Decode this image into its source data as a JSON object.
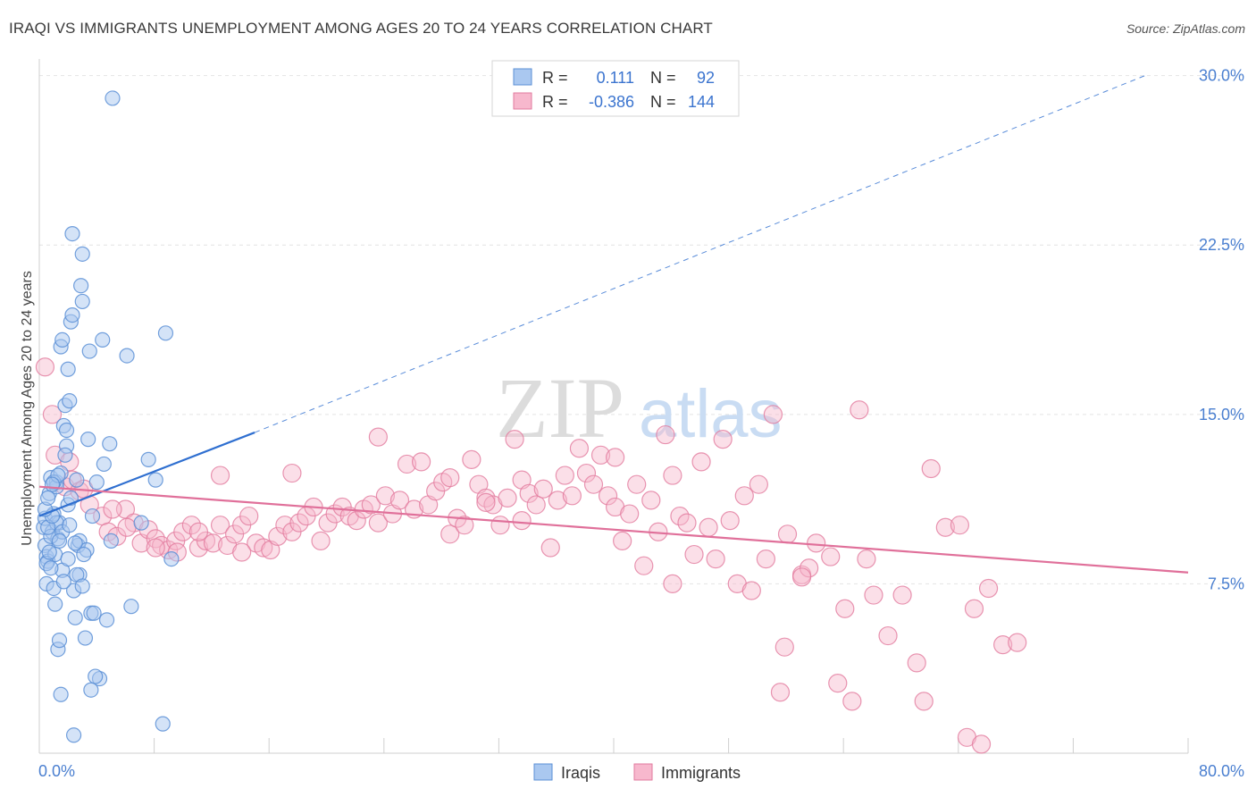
{
  "header": {
    "title": "IRAQI VS IMMIGRANTS UNEMPLOYMENT AMONG AGES 20 TO 24 YEARS CORRELATION CHART",
    "source": "Source: ZipAtlas.com"
  },
  "legend_box": {
    "iraqis": {
      "r_label": "R =",
      "r_value": "0.111",
      "n_label": "N =",
      "n_value": "92"
    },
    "immigrants": {
      "r_label": "R =",
      "r_value": "-0.386",
      "n_label": "N =",
      "n_value": "144"
    }
  },
  "bottom_legend": {
    "iraqis": "Iraqis",
    "immigrants": "Immigrants"
  },
  "watermark": {
    "zip": "ZIP",
    "atlas": "atlas"
  },
  "colors": {
    "iraqis_fill": "#aac8f0",
    "iraqis_stroke": "#5b8fd6",
    "iraqis_line": "#2f6fd0",
    "immigrants_fill": "#f7b8cd",
    "immigrants_stroke": "#e27a9e",
    "immigrants_line": "#e0709a",
    "tick_label": "#4a7fd0",
    "grid": "#e4e4e4"
  },
  "chart_data": {
    "type": "scatter",
    "title": "IRAQI VS IMMIGRANTS UNEMPLOYMENT AMONG AGES 20 TO 24 YEARS CORRELATION CHART",
    "xlabel": "",
    "ylabel": "Unemployment Among Ages 20 to 24 years",
    "xlim": [
      0,
      80
    ],
    "ylim": [
      0,
      30.5
    ],
    "x_tick_labels": [
      "0.0%",
      "80.0%"
    ],
    "y_ticks": [
      7.5,
      15.0,
      22.5,
      30.0
    ],
    "y_tick_labels": [
      "7.5%",
      "15.0%",
      "22.5%",
      "30.0%"
    ],
    "grid": true,
    "legend_position": "top-center",
    "series": [
      {
        "name": "Iraqis",
        "r": 0.111,
        "n": 92,
        "trend": {
          "x": [
            0.0,
            15.0
          ],
          "y": [
            10.5,
            14.2
          ],
          "dashed_extension": {
            "x": [
              15.0,
              77.0
            ],
            "y": [
              14.2,
              30.0
            ]
          }
        },
        "points": [
          [
            0.3,
            10.0
          ],
          [
            0.4,
            9.2
          ],
          [
            0.5,
            8.7
          ],
          [
            0.6,
            8.5
          ],
          [
            0.4,
            10.4
          ],
          [
            0.7,
            11.5
          ],
          [
            0.8,
            12.2
          ],
          [
            0.5,
            7.5
          ],
          [
            0.9,
            9.8
          ],
          [
            1.0,
            10.6
          ],
          [
            1.1,
            8.8
          ],
          [
            1.2,
            12.0
          ],
          [
            1.3,
            9.5
          ],
          [
            1.4,
            10.2
          ],
          [
            1.5,
            12.4
          ],
          [
            1.6,
            8.1
          ],
          [
            1.7,
            14.5
          ],
          [
            1.8,
            15.4
          ],
          [
            1.9,
            13.6
          ],
          [
            2.0,
            11.0
          ],
          [
            2.1,
            15.6
          ],
          [
            2.2,
            19.1
          ],
          [
            2.3,
            23.0
          ],
          [
            2.4,
            7.2
          ],
          [
            2.5,
            6.0
          ],
          [
            2.7,
            9.2
          ],
          [
            2.8,
            9.4
          ],
          [
            2.6,
            12.1
          ],
          [
            2.9,
            20.7
          ],
          [
            3.0,
            20.0
          ],
          [
            3.0,
            22.1
          ],
          [
            3.2,
            5.1
          ],
          [
            3.3,
            9.0
          ],
          [
            3.4,
            13.9
          ],
          [
            3.5,
            17.8
          ],
          [
            3.6,
            6.2
          ],
          [
            3.7,
            10.5
          ],
          [
            3.8,
            6.2
          ],
          [
            4.0,
            12.0
          ],
          [
            4.2,
            3.3
          ],
          [
            4.4,
            18.3
          ],
          [
            4.5,
            12.8
          ],
          [
            4.7,
            5.9
          ],
          [
            4.9,
            13.7
          ],
          [
            5.1,
            29.0
          ],
          [
            6.1,
            17.6
          ],
          [
            6.4,
            6.5
          ],
          [
            7.1,
            10.2
          ],
          [
            7.6,
            13.0
          ],
          [
            8.1,
            12.1
          ],
          [
            8.6,
            1.3
          ],
          [
            8.8,
            18.6
          ],
          [
            9.2,
            8.6
          ],
          [
            1.5,
            18.0
          ],
          [
            1.6,
            18.3
          ],
          [
            2.0,
            17.0
          ],
          [
            1.8,
            13.2
          ],
          [
            1.2,
            10.2
          ],
          [
            0.8,
            9.6
          ],
          [
            0.6,
            10.0
          ],
          [
            1.3,
            4.6
          ],
          [
            1.5,
            2.6
          ],
          [
            2.4,
            0.8
          ],
          [
            2.8,
            7.9
          ],
          [
            3.9,
            3.4
          ],
          [
            3.6,
            2.8
          ],
          [
            2.6,
            7.9
          ],
          [
            1.0,
            7.3
          ],
          [
            1.1,
            6.6
          ],
          [
            1.4,
            5.0
          ],
          [
            0.5,
            8.4
          ],
          [
            0.7,
            8.9
          ],
          [
            0.9,
            10.5
          ],
          [
            1.2,
            11.8
          ],
          [
            1.0,
            12.0
          ],
          [
            1.9,
            14.3
          ],
          [
            2.2,
            11.3
          ],
          [
            2.5,
            9.3
          ],
          [
            3.1,
            8.8
          ],
          [
            1.6,
            9.8
          ],
          [
            0.4,
            10.8
          ],
          [
            0.6,
            11.3
          ],
          [
            1.3,
            12.3
          ],
          [
            2.1,
            10.1
          ],
          [
            0.8,
            8.2
          ],
          [
            1.4,
            9.4
          ],
          [
            2.0,
            8.6
          ],
          [
            0.9,
            11.9
          ],
          [
            1.7,
            7.6
          ],
          [
            3.0,
            7.4
          ],
          [
            5.0,
            9.4
          ],
          [
            2.3,
            19.4
          ]
        ]
      },
      {
        "name": "Immigrants",
        "r": -0.386,
        "n": 144,
        "trend": {
          "x": [
            0.0,
            80.0
          ],
          "y": [
            11.8,
            8.0
          ]
        },
        "points": [
          [
            0.4,
            17.1
          ],
          [
            0.9,
            15.0
          ],
          [
            1.1,
            13.2
          ],
          [
            1.8,
            11.8
          ],
          [
            2.3,
            12.1
          ],
          [
            2.8,
            11.6
          ],
          [
            3.5,
            11.0
          ],
          [
            4.4,
            10.5
          ],
          [
            4.8,
            9.8
          ],
          [
            5.4,
            9.6
          ],
          [
            6.0,
            10.8
          ],
          [
            6.6,
            10.2
          ],
          [
            7.1,
            9.3
          ],
          [
            7.6,
            9.9
          ],
          [
            8.1,
            9.5
          ],
          [
            8.5,
            9.2
          ],
          [
            9.0,
            9.0
          ],
          [
            9.5,
            9.4
          ],
          [
            10.0,
            9.8
          ],
          [
            10.6,
            10.1
          ],
          [
            11.1,
            9.1
          ],
          [
            11.6,
            9.4
          ],
          [
            12.1,
            9.3
          ],
          [
            12.6,
            10.1
          ],
          [
            13.1,
            9.2
          ],
          [
            13.6,
            9.7
          ],
          [
            14.1,
            10.1
          ],
          [
            14.6,
            10.5
          ],
          [
            15.1,
            9.3
          ],
          [
            15.6,
            9.1
          ],
          [
            16.1,
            9.0
          ],
          [
            16.6,
            9.6
          ],
          [
            17.1,
            10.1
          ],
          [
            17.6,
            9.8
          ],
          [
            18.1,
            10.2
          ],
          [
            18.6,
            10.5
          ],
          [
            19.1,
            10.9
          ],
          [
            19.6,
            9.4
          ],
          [
            20.1,
            10.2
          ],
          [
            20.6,
            10.6
          ],
          [
            21.1,
            10.9
          ],
          [
            21.6,
            10.5
          ],
          [
            22.1,
            10.3
          ],
          [
            22.6,
            10.8
          ],
          [
            23.1,
            11.0
          ],
          [
            23.6,
            10.2
          ],
          [
            24.1,
            11.4
          ],
          [
            24.6,
            10.6
          ],
          [
            25.1,
            11.2
          ],
          [
            25.6,
            12.8
          ],
          [
            26.1,
            10.8
          ],
          [
            26.6,
            12.9
          ],
          [
            27.1,
            11.0
          ],
          [
            27.6,
            11.6
          ],
          [
            28.1,
            12.0
          ],
          [
            28.6,
            9.7
          ],
          [
            29.1,
            10.4
          ],
          [
            29.6,
            10.1
          ],
          [
            30.1,
            13.0
          ],
          [
            30.6,
            11.9
          ],
          [
            31.1,
            11.3
          ],
          [
            31.6,
            11.0
          ],
          [
            32.1,
            10.1
          ],
          [
            32.6,
            11.3
          ],
          [
            33.1,
            13.9
          ],
          [
            33.6,
            12.1
          ],
          [
            34.1,
            11.5
          ],
          [
            34.6,
            11.0
          ],
          [
            35.1,
            11.7
          ],
          [
            35.6,
            9.1
          ],
          [
            36.1,
            11.2
          ],
          [
            36.6,
            12.3
          ],
          [
            37.1,
            11.4
          ],
          [
            37.6,
            13.5
          ],
          [
            38.1,
            12.4
          ],
          [
            38.6,
            11.9
          ],
          [
            39.1,
            13.2
          ],
          [
            39.6,
            11.4
          ],
          [
            40.1,
            10.9
          ],
          [
            40.6,
            9.4
          ],
          [
            41.1,
            10.6
          ],
          [
            41.6,
            11.9
          ],
          [
            42.1,
            8.3
          ],
          [
            42.6,
            11.2
          ],
          [
            43.1,
            9.8
          ],
          [
            43.6,
            14.1
          ],
          [
            44.1,
            7.5
          ],
          [
            44.6,
            10.5
          ],
          [
            45.1,
            10.2
          ],
          [
            45.6,
            8.8
          ],
          [
            46.1,
            12.9
          ],
          [
            46.6,
            10.0
          ],
          [
            47.1,
            8.6
          ],
          [
            47.6,
            13.9
          ],
          [
            48.1,
            10.3
          ],
          [
            48.6,
            7.5
          ],
          [
            49.1,
            11.4
          ],
          [
            49.6,
            7.2
          ],
          [
            50.1,
            11.9
          ],
          [
            50.6,
            8.6
          ],
          [
            51.1,
            15.0
          ],
          [
            52.1,
            9.7
          ],
          [
            53.1,
            7.9
          ],
          [
            54.1,
            9.3
          ],
          [
            55.1,
            8.7
          ],
          [
            56.1,
            6.4
          ],
          [
            57.1,
            15.2
          ],
          [
            58.1,
            7.0
          ],
          [
            59.1,
            5.2
          ],
          [
            60.1,
            7.0
          ],
          [
            61.1,
            4.0
          ],
          [
            62.1,
            12.6
          ],
          [
            63.1,
            10.0
          ],
          [
            64.1,
            10.1
          ],
          [
            65.1,
            6.4
          ],
          [
            66.1,
            7.3
          ],
          [
            67.1,
            4.8
          ],
          [
            68.1,
            4.9
          ],
          [
            57.6,
            8.6
          ],
          [
            56.6,
            2.3
          ],
          [
            53.6,
            8.2
          ],
          [
            61.6,
            2.3
          ],
          [
            55.6,
            3.1
          ],
          [
            51.6,
            2.7
          ],
          [
            51.9,
            4.7
          ],
          [
            64.6,
            0.7
          ],
          [
            65.6,
            0.4
          ],
          [
            53.1,
            7.8
          ],
          [
            12.6,
            12.3
          ],
          [
            17.6,
            12.4
          ],
          [
            23.6,
            14.0
          ],
          [
            28.6,
            12.2
          ],
          [
            33.6,
            10.3
          ],
          [
            40.1,
            13.1
          ],
          [
            44.1,
            12.3
          ],
          [
            31.1,
            11.1
          ],
          [
            2.1,
            12.9
          ],
          [
            3.1,
            11.7
          ],
          [
            5.1,
            10.8
          ],
          [
            6.1,
            10.0
          ],
          [
            8.1,
            9.1
          ],
          [
            9.6,
            8.9
          ],
          [
            11.1,
            9.8
          ],
          [
            14.1,
            8.9
          ]
        ]
      }
    ]
  }
}
